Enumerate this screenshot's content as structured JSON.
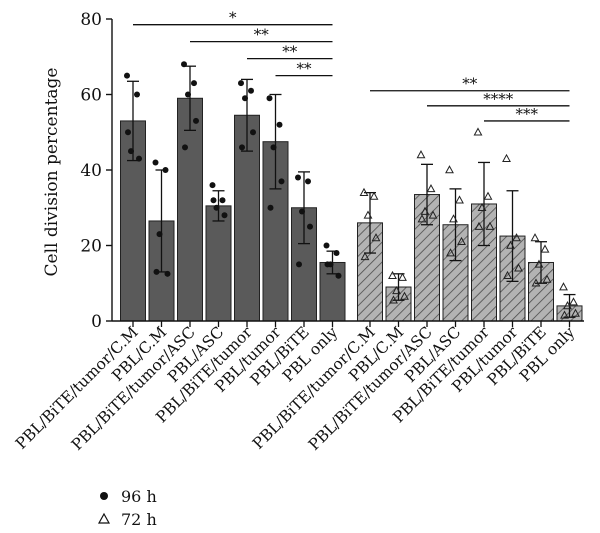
{
  "chart_data": {
    "type": "bar",
    "ylabel": "Cell division percentage",
    "ylim": [
      0,
      80
    ],
    "yticks": [
      "0",
      "20",
      "40",
      "60",
      "80"
    ],
    "categories": [
      "PBL/BiTE/tumor/C.M",
      "PBL/C.M",
      "PBL/BiTE/tumor/ASC",
      "PBL/ASC",
      "PBL/BiTE/tumor",
      "PBL/tumor",
      "PBL/BiTE",
      "PBL only"
    ],
    "series": [
      {
        "name": "96 h",
        "marker": "filled-circle",
        "fill": "#5a5a5a",
        "values": [
          53,
          26.5,
          59,
          30.5,
          54.5,
          47.5,
          30,
          15.5
        ],
        "errors": [
          10.5,
          13.5,
          8.5,
          4,
          9.5,
          12.5,
          9.5,
          3
        ],
        "points": [
          [
            65,
            60,
            45,
            43,
            50
          ],
          [
            42,
            40,
            23,
            12.5,
            13
          ],
          [
            68,
            63,
            60,
            53,
            46
          ],
          [
            36,
            32,
            30,
            28,
            32
          ],
          [
            63,
            61,
            59,
            50,
            46
          ],
          [
            59,
            52,
            46,
            37,
            30
          ],
          [
            38,
            37,
            29,
            25,
            15
          ],
          [
            20,
            18,
            15,
            12,
            15
          ]
        ]
      },
      {
        "name": "72 h",
        "marker": "open-triangle",
        "fill": "#b3b3b3",
        "hatch": true,
        "values": [
          26,
          9,
          33.5,
          25.5,
          31,
          22.5,
          15.5,
          4
        ],
        "errors": [
          8,
          3.5,
          8,
          9.5,
          11,
          12,
          5.5,
          3
        ],
        "points": [
          [
            34,
            33,
            28,
            22,
            17
          ],
          [
            12,
            11.5,
            8,
            6.5,
            5.5
          ],
          [
            44,
            35,
            29,
            28,
            27
          ],
          [
            40,
            32,
            27,
            21,
            18
          ],
          [
            50,
            33,
            30,
            25,
            25
          ],
          [
            43,
            22,
            20,
            14,
            12
          ],
          [
            22,
            19,
            15,
            11,
            10
          ],
          [
            9,
            5,
            4,
            2,
            1.5
          ]
        ]
      }
    ],
    "significance": [
      {
        "label": "*",
        "from_series": 0,
        "from_index": 0,
        "to_index": 7,
        "y": 78.5
      },
      {
        "label": "**",
        "from_series": 0,
        "from_index": 2,
        "to_index": 7,
        "y": 74
      },
      {
        "label": "**",
        "from_series": 0,
        "from_index": 4,
        "to_index": 7,
        "y": 69.5
      },
      {
        "label": "**",
        "from_series": 0,
        "from_index": 5,
        "to_index": 7,
        "y": 65
      },
      {
        "label": "**",
        "from_series": 1,
        "from_index": 0,
        "to_index": 7,
        "y": 61
      },
      {
        "label": "****",
        "from_series": 1,
        "from_index": 2,
        "to_index": 7,
        "y": 57
      },
      {
        "label": "***",
        "from_series": 1,
        "from_index": 4,
        "to_index": 7,
        "y": 53
      }
    ],
    "legend": {
      "position": "bottom-left",
      "entries": [
        {
          "label": "96 h",
          "marker": "filled-circle"
        },
        {
          "label": "72 h",
          "marker": "open-triangle"
        }
      ]
    }
  }
}
